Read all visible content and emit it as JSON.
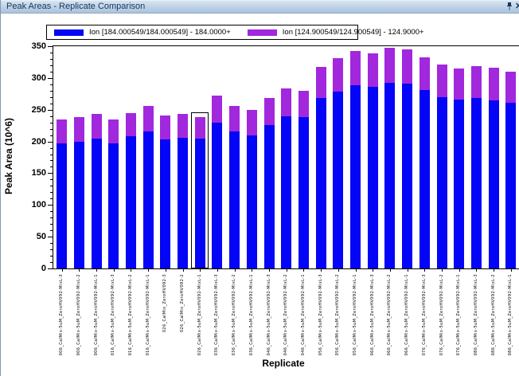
{
  "window": {
    "title": "Peak Areas - Replicate Comparison"
  },
  "legend": {
    "items": [
      {
        "label": "Ion [184.000549/184.000549] - 184.0000+",
        "color": "#0404F6"
      },
      {
        "label": "Ion [124.900549/124.900549] - 124.9000+",
        "color": "#A228DD"
      }
    ]
  },
  "chart_data": {
    "type": "bar",
    "stacked": true,
    "xlabel": "Replicate",
    "ylabel": "Peak Area (10^6)",
    "ylim": [
      0,
      350
    ],
    "y_major_step": 50,
    "y_minor_step": 10,
    "grid": false,
    "legend_position": "top",
    "selected_index": 8,
    "categories": [
      "006_CalMix-5uM_ZeroHV092-MixL-3",
      "006_CalMix-5uM_ZeroHV092-MixL-2",
      "006_CalMix-5uM_ZeroHV092-MixL-1",
      "016_CalMix-5uM_ZeroHV092-MixL-3",
      "016_CalMix-5uM_ZeroHV092-MixL-2",
      "016_CalMix-5uM_ZeroHV092-MixL-1",
      "026_CalMix_ZeroHV092-3",
      "026_CalMix_ZeroHV092-2",
      "026_CalMix-5uM_ZeroHV092-MixL-1",
      "036_CalMix-5uM_ZeroHV092-MixL-3",
      "036_CalMix-5uM_ZeroHV092-MixL-2",
      "036_CalMix-5uM_ZeroHV092-MixL-1",
      "046_CalMix-5uM_ZeroHV092-MixL-3",
      "046_CalMix-5uM_ZeroHV092-MixL-2",
      "046_CalMix-5uM_ZeroHV092-MixL-1",
      "056_CalMix-5uM_ZeroHV092-MixL-3",
      "056_CalMix-5uM_ZeroHV092-MixL-2",
      "056_CalMix-5uM_ZeroHV092-MixL-1",
      "066_CalMix-5uM_ZeroHV092-MixL-3",
      "066_CalMix-5uM_ZeroHV092-MixL-2",
      "066_CalMix-5uM_ZeroHV092-MixL-1",
      "076_CalMix-5uM_ZeroHV092-MixL-3",
      "076_CalMix-5uM_ZeroHV092-MixL-2",
      "076_CalMix-5uM_ZeroHV092-MixL-1",
      "086_CalMix-5uM_ZeroHV092-MixL-3",
      "086_CalMix-5uM_ZeroHV092-MixL-2",
      "086_CalMix-5uM_ZeroHV092-MixL-1"
    ],
    "series": [
      {
        "name": "Ion [184.000549/184.000549] - 184.0000+",
        "color": "#0404F6",
        "values": [
          197,
          200,
          205,
          197,
          208,
          216,
          203,
          206,
          205,
          229,
          216,
          210,
          226,
          239,
          238,
          269,
          278,
          289,
          286,
          292,
          291,
          281,
          270,
          266,
          268,
          265,
          261
        ]
      },
      {
        "name": "Ion [124.900549/124.900549] - 124.9000+",
        "color": "#A228DD",
        "values": [
          37,
          39,
          38,
          37,
          37,
          40,
          38,
          38,
          33,
          43,
          40,
          40,
          43,
          44,
          42,
          49,
          53,
          54,
          53,
          55,
          54,
          52,
          51,
          49,
          51,
          51,
          49
        ]
      }
    ]
  }
}
